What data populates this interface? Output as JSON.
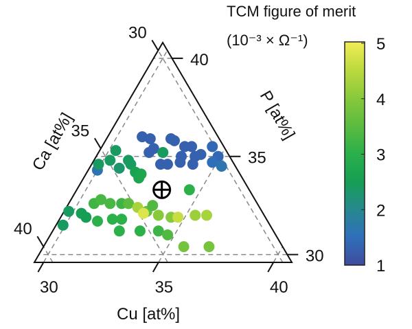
{
  "chart_data": {
    "type": "scatter",
    "subtype": "ternary",
    "axes": {
      "bottom": {
        "label": "Cu [at%]",
        "ticks": [
          30,
          35,
          40
        ]
      },
      "left": {
        "label": "Ca [at%]",
        "ticks": [
          30,
          35,
          40
        ]
      },
      "right": {
        "label": "P [at%]",
        "ticks": [
          30,
          35,
          40
        ]
      }
    },
    "component_range": [
      29.6,
      40.8
    ],
    "grid": "dashed lines at 30, 35, 40 for each component",
    "marker_reference": {
      "symbol": "circle-plus",
      "Cu": 33.3,
      "Ca": 33.3,
      "P": 33.3
    },
    "colorbar": {
      "title_line1": "TCM figure of merit",
      "title_line2": "(10⁻³ × Ω⁻¹)",
      "range": [
        1,
        5
      ],
      "ticks": [
        1,
        2,
        3,
        4,
        5
      ],
      "colormap": [
        "#3f4c9e",
        "#2f6fba",
        "#27898f",
        "#169e54",
        "#2bb04a",
        "#5bbb3f",
        "#88c93c",
        "#bcd93e",
        "#f2ee55"
      ],
      "placement": "right"
    },
    "points": [
      {
        "Cu": 31.1,
        "Ca": 32.9,
        "P": 36.0,
        "v": 1.3
      },
      {
        "Cu": 31.5,
        "Ca": 32.6,
        "P": 35.9,
        "v": 1.3
      },
      {
        "Cu": 32.4,
        "Ca": 31.7,
        "P": 35.9,
        "v": 1.3
      },
      {
        "Cu": 32.6,
        "Ca": 31.6,
        "P": 35.8,
        "v": 1.3
      },
      {
        "Cu": 33.2,
        "Ca": 31.3,
        "P": 35.5,
        "v": 1.3
      },
      {
        "Cu": 33.5,
        "Ca": 31.0,
        "P": 35.5,
        "v": 1.3
      },
      {
        "Cu": 34.4,
        "Ca": 30.1,
        "P": 35.5,
        "v": 1.4
      },
      {
        "Cu": 31.8,
        "Ca": 33.0,
        "P": 35.2,
        "v": 1.3
      },
      {
        "Cu": 31.9,
        "Ca": 32.7,
        "P": 35.4,
        "v": 1.3
      },
      {
        "Cu": 33.3,
        "Ca": 31.7,
        "P": 35.0,
        "v": 1.3
      },
      {
        "Cu": 33.9,
        "Ca": 31.1,
        "P": 35.0,
        "v": 1.3
      },
      {
        "Cu": 34.1,
        "Ca": 30.8,
        "P": 35.1,
        "v": 1.3
      },
      {
        "Cu": 34.9,
        "Ca": 30.1,
        "P": 35.0,
        "v": 1.4
      },
      {
        "Cu": 32.6,
        "Ca": 32.8,
        "P": 34.6,
        "v": 1.3
      },
      {
        "Cu": 32.9,
        "Ca": 32.5,
        "P": 34.6,
        "v": 1.3
      },
      {
        "Cu": 33.4,
        "Ca": 31.9,
        "P": 34.7,
        "v": 1.3
      },
      {
        "Cu": 34.0,
        "Ca": 31.4,
        "P": 34.6,
        "v": 1.3
      },
      {
        "Cu": 34.8,
        "Ca": 30.5,
        "P": 34.7,
        "v": 1.5
      },
      {
        "Cu": 35.3,
        "Ca": 30.2,
        "P": 34.5,
        "v": 1.6
      },
      {
        "Cu": 30.0,
        "Ca": 35.7,
        "P": 34.3,
        "v": 1.6
      },
      {
        "Cu": 30.3,
        "Ca": 34.4,
        "P": 35.3,
        "v": 2.4
      },
      {
        "Cu": 30.3,
        "Ca": 34.9,
        "P": 34.8,
        "v": 2.4
      },
      {
        "Cu": 29.9,
        "Ca": 35.5,
        "P": 34.6,
        "v": 2.4
      },
      {
        "Cu": 31.1,
        "Ca": 34.1,
        "P": 34.8,
        "v": 2.4
      },
      {
        "Cu": 31.3,
        "Ca": 34.1,
        "P": 34.6,
        "v": 2.4
      },
      {
        "Cu": 32.4,
        "Ca": 32.4,
        "P": 35.2,
        "v": 2.4
      },
      {
        "Cu": 30.9,
        "Ca": 34.7,
        "P": 34.4,
        "v": 2.3
      },
      {
        "Cu": 31.7,
        "Ca": 34.1,
        "P": 34.2,
        "v": 2.6
      },
      {
        "Cu": 32.0,
        "Ca": 33.9,
        "P": 34.1,
        "v": 2.7
      },
      {
        "Cu": 32.0,
        "Ca": 34.1,
        "P": 33.9,
        "v": 2.7
      },
      {
        "Cu": 34.5,
        "Ca": 32.2,
        "P": 33.3,
        "v": 3.0
      },
      {
        "Cu": 29.8,
        "Ca": 38.0,
        "P": 32.2,
        "v": 2.4
      },
      {
        "Cu": 29.9,
        "Ca": 38.6,
        "P": 31.5,
        "v": 2.4
      },
      {
        "Cu": 30.4,
        "Ca": 37.5,
        "P": 32.1,
        "v": 2.5
      },
      {
        "Cu": 30.7,
        "Ca": 37.4,
        "P": 31.9,
        "v": 2.5
      },
      {
        "Cu": 30.7,
        "Ca": 36.7,
        "P": 32.6,
        "v": 3.2
      },
      {
        "Cu": 30.9,
        "Ca": 36.3,
        "P": 32.8,
        "v": 3.3
      },
      {
        "Cu": 31.4,
        "Ca": 36.0,
        "P": 32.6,
        "v": 3.3
      },
      {
        "Cu": 31.9,
        "Ca": 35.5,
        "P": 32.6,
        "v": 3.2
      },
      {
        "Cu": 32.2,
        "Ca": 35.2,
        "P": 32.6,
        "v": 3.5
      },
      {
        "Cu": 32.7,
        "Ca": 34.9,
        "P": 32.4,
        "v": 4.3
      },
      {
        "Cu": 33.2,
        "Ca": 34.6,
        "P": 32.2,
        "v": 3.6
      },
      {
        "Cu": 33.3,
        "Ca": 34.2,
        "P": 32.5,
        "v": 3.4
      },
      {
        "Cu": 33.8,
        "Ca": 34.2,
        "P": 32.0,
        "v": 4.0
      },
      {
        "Cu": 33.1,
        "Ca": 34.8,
        "P": 32.1,
        "v": 4.8
      },
      {
        "Cu": 34.4,
        "Ca": 33.7,
        "P": 31.9,
        "v": 4.0
      },
      {
        "Cu": 34.7,
        "Ca": 33.4,
        "P": 31.9,
        "v": 4.6
      },
      {
        "Cu": 35.4,
        "Ca": 32.6,
        "P": 32.0,
        "v": 4.2
      },
      {
        "Cu": 35.9,
        "Ca": 32.1,
        "P": 32.0,
        "v": 4.3
      },
      {
        "Cu": 31.3,
        "Ca": 37.0,
        "P": 31.7,
        "v": 3.0
      },
      {
        "Cu": 31.9,
        "Ca": 36.3,
        "P": 31.8,
        "v": 3.0
      },
      {
        "Cu": 32.3,
        "Ca": 35.9,
        "P": 31.8,
        "v": 3.0
      },
      {
        "Cu": 32.5,
        "Ca": 36.3,
        "P": 31.2,
        "v": 3.0
      },
      {
        "Cu": 33.4,
        "Ca": 35.4,
        "P": 31.2,
        "v": 3.0
      },
      {
        "Cu": 34.2,
        "Ca": 34.6,
        "P": 31.2,
        "v": 3.2
      },
      {
        "Cu": 34.7,
        "Ca": 34.3,
        "P": 31.0,
        "v": 3.4
      },
      {
        "Cu": 35.7,
        "Ca": 33.9,
        "P": 30.4,
        "v": 3.8
      },
      {
        "Cu": 36.8,
        "Ca": 32.8,
        "P": 30.4,
        "v": 3.8
      }
    ]
  }
}
